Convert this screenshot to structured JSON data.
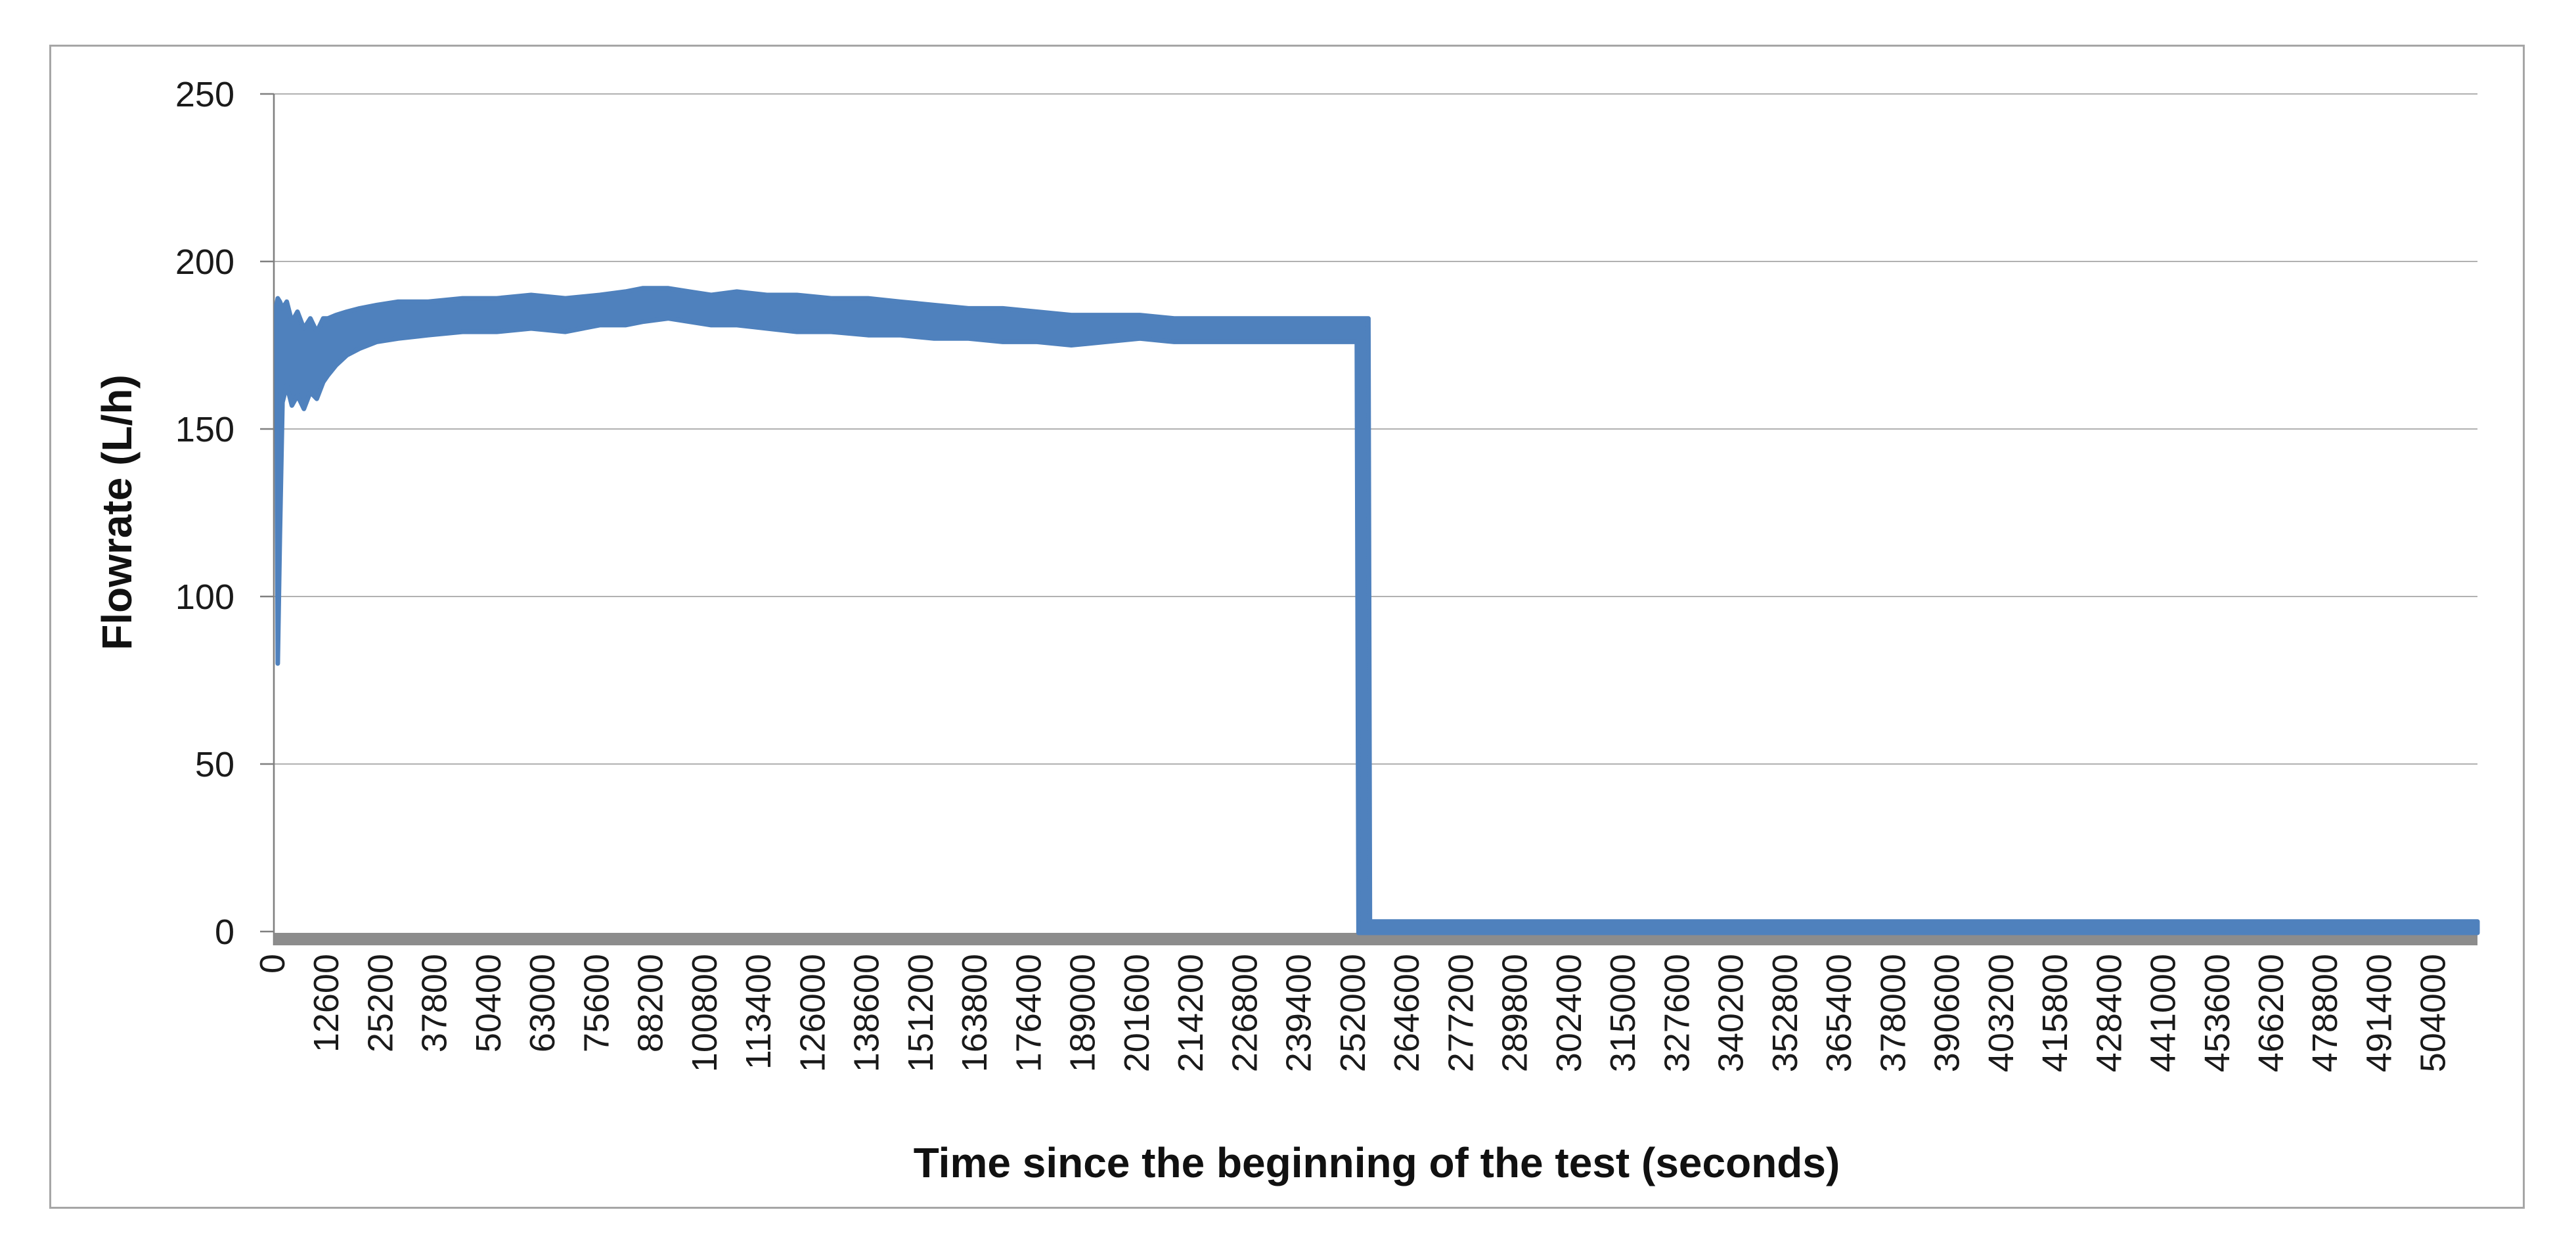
{
  "chart_data": {
    "type": "line",
    "title": "",
    "xlabel": "Time since the beginning of the test (seconds)",
    "ylabel": "Flowrate (L/h)",
    "legend": "none",
    "grid": "horizontal-only",
    "ylim": [
      0,
      250
    ],
    "xlim": [
      0,
      514000
    ],
    "y_ticks": [
      0,
      50,
      100,
      150,
      200,
      250
    ],
    "y_tick_labels": [
      "0",
      "50",
      "100",
      "150",
      "200",
      "250"
    ],
    "x_tick_interval": 12600,
    "x_tick_labels": [
      "0",
      "12600",
      "25200",
      "37800",
      "50400",
      "63000",
      "75600",
      "88200",
      "100800",
      "113400",
      "126000",
      "138600",
      "151200",
      "163800",
      "176400",
      "189000",
      "201600",
      "214200",
      "226800",
      "239400",
      "252000",
      "264600",
      "277200",
      "289800",
      "302400",
      "315000",
      "327600",
      "340200",
      "352800",
      "365400",
      "378000",
      "390600",
      "403200",
      "415800",
      "428400",
      "441000",
      "453600",
      "466200",
      "478800",
      "491400",
      "504000"
    ],
    "x_tick_label_rotation_deg": -90,
    "series": [
      {
        "name": "Flowrate",
        "color": "#4F81BD",
        "description": "Thick noisy line: brief dip to ~80 L/h right at start, recovers and climbs to a plateau of ~178-192 L/h, peaks ~192 near t=88200 s, slowly declines to ~180 L/h, then falls vertically to ~1 L/h at t~255000 s and stays near zero until the end (~514000 s).",
        "band": [
          [
            600,
            187,
            182
          ],
          [
            900,
            189,
            80
          ],
          [
            1400,
            188,
            118
          ],
          [
            2000,
            186,
            158
          ],
          [
            3000,
            188,
            163
          ],
          [
            4200,
            182,
            157
          ],
          [
            5500,
            185,
            160
          ],
          [
            7000,
            180,
            156
          ],
          [
            8500,
            183,
            161
          ],
          [
            10000,
            179,
            159
          ],
          [
            11500,
            183,
            164
          ],
          [
            12600,
            183,
            166
          ],
          [
            14500,
            184,
            169
          ],
          [
            17000,
            185,
            172
          ],
          [
            20000,
            186,
            174
          ],
          [
            24000,
            187,
            176
          ],
          [
            29000,
            188,
            177
          ],
          [
            36000,
            188,
            178
          ],
          [
            44000,
            189,
            179
          ],
          [
            52000,
            189,
            179
          ],
          [
            60000,
            190,
            180
          ],
          [
            68000,
            189,
            179
          ],
          [
            76000,
            190,
            181
          ],
          [
            82000,
            191,
            181
          ],
          [
            86000,
            192,
            182
          ],
          [
            92000,
            192,
            183
          ],
          [
            97000,
            191,
            182
          ],
          [
            102000,
            190,
            181
          ],
          [
            108000,
            191,
            181
          ],
          [
            115000,
            190,
            180
          ],
          [
            122000,
            190,
            179
          ],
          [
            130000,
            189,
            179
          ],
          [
            138600,
            189,
            178
          ],
          [
            146000,
            188,
            178
          ],
          [
            154000,
            187,
            177
          ],
          [
            162000,
            186,
            177
          ],
          [
            170000,
            186,
            176
          ],
          [
            178000,
            185,
            176
          ],
          [
            186000,
            184,
            175
          ],
          [
            194000,
            184,
            176
          ],
          [
            202000,
            184,
            177
          ],
          [
            210000,
            183,
            176
          ],
          [
            218000,
            183,
            176
          ],
          [
            226800,
            183,
            176
          ],
          [
            235000,
            183,
            176
          ],
          [
            243000,
            183,
            176
          ],
          [
            252600,
            183,
            176
          ]
        ],
        "tail_top": [
          [
            255300,
            183
          ],
          [
            255650,
            3
          ],
          [
            514000,
            3
          ]
        ],
        "tail_bottom": [
          [
            253000,
            -0.4
          ],
          [
            514000,
            -0.4
          ]
        ],
        "shutoff_time_s": 255000,
        "post_shutoff_value": 1
      }
    ],
    "key_points": {
      "start_dip": {
        "t": 1000,
        "value": 80
      },
      "plateau_range": [
        178,
        192
      ],
      "peak": {
        "t": 88200,
        "value": 192
      },
      "value_before_shutoff": 180,
      "value_after_shutoff": 1
    }
  },
  "colors": {
    "series": "#4F81BD",
    "axis_band": "#8C8C8C",
    "axis_line": "#808080",
    "gridline": "#A6A6A6",
    "frame": "#A6A6A6",
    "text": "#1a1a1a",
    "background": "#ffffff"
  }
}
